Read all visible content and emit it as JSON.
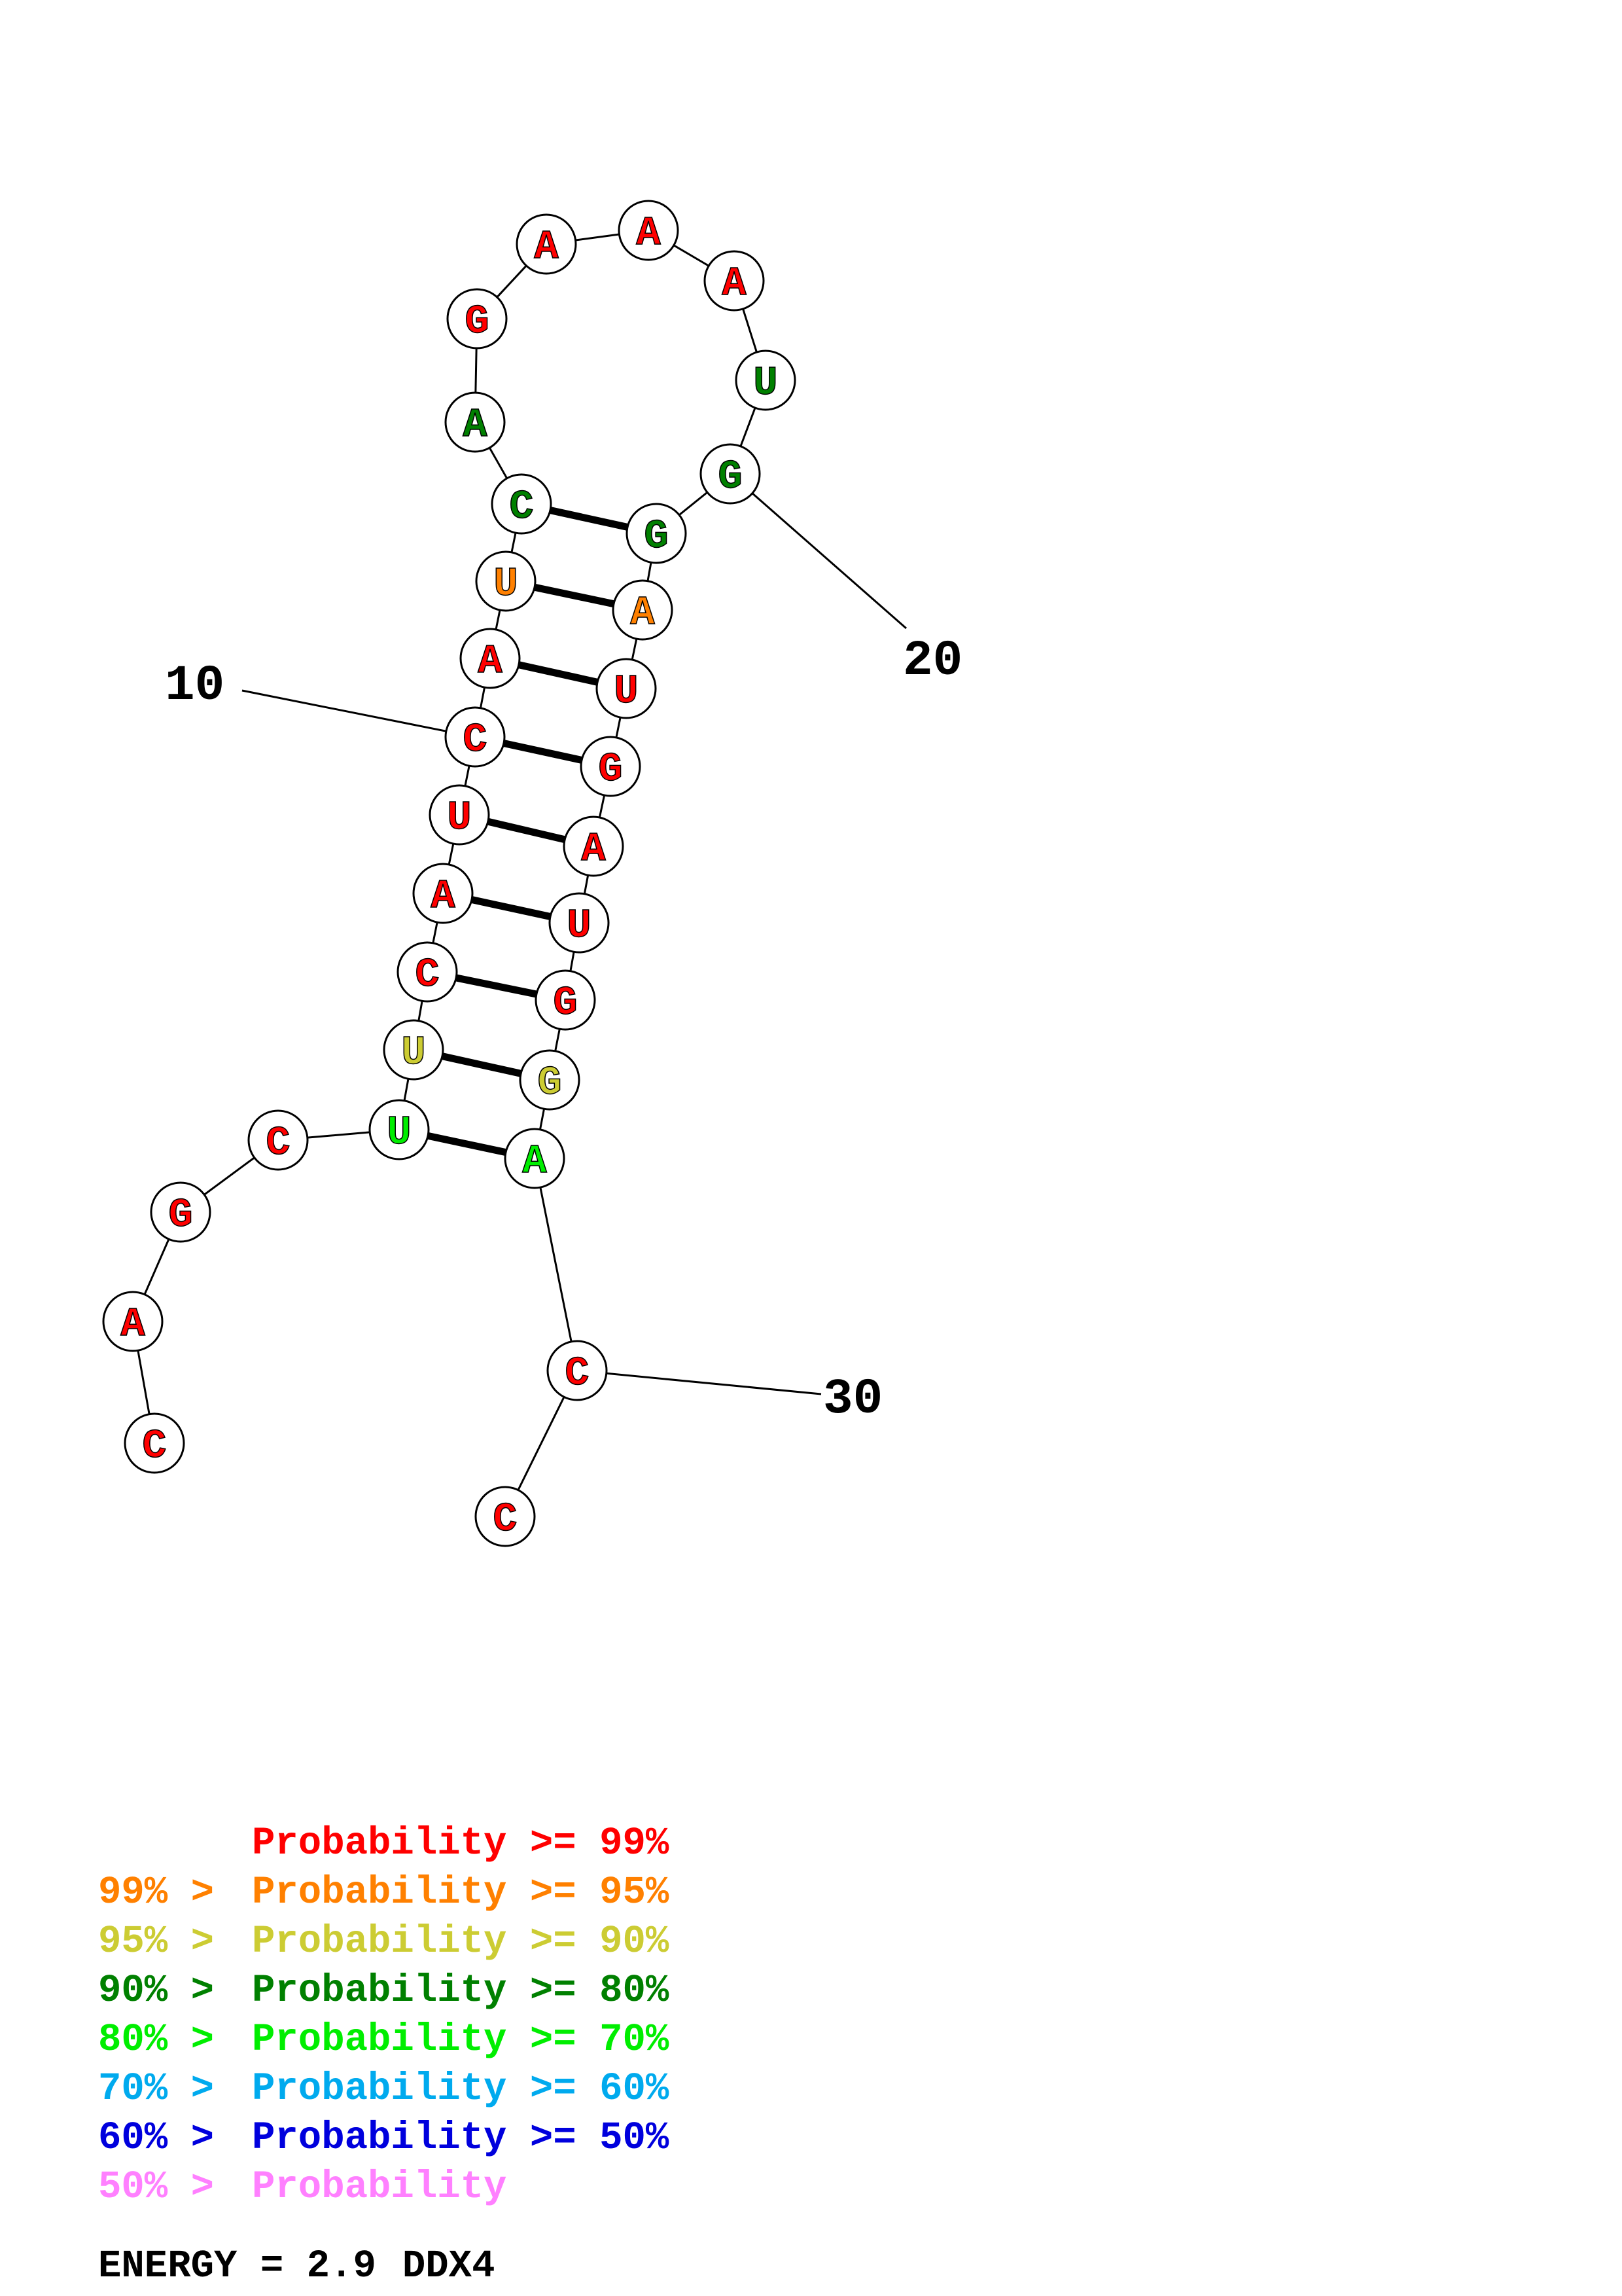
{
  "colors": {
    "red": "#ff0000",
    "orange": "#ff8000",
    "yellow": "#cccc33",
    "darkgreen": "#008000",
    "green": "#00ee00",
    "cyan": "#00aaee",
    "blue": "#0000dd",
    "pink": "#ff80ff"
  },
  "sequence": [
    {
      "base": "C",
      "color": "red"
    },
    {
      "base": "A",
      "color": "red"
    },
    {
      "base": "G",
      "color": "red"
    },
    {
      "base": "C",
      "color": "red"
    },
    {
      "base": "U",
      "color": "green"
    },
    {
      "base": "U",
      "color": "yellow"
    },
    {
      "base": "C",
      "color": "red"
    },
    {
      "base": "A",
      "color": "red"
    },
    {
      "base": "U",
      "color": "red"
    },
    {
      "base": "C",
      "color": "red"
    },
    {
      "base": "A",
      "color": "red"
    },
    {
      "base": "U",
      "color": "orange"
    },
    {
      "base": "C",
      "color": "darkgreen"
    },
    {
      "base": "A",
      "color": "darkgreen"
    },
    {
      "base": "G",
      "color": "red"
    },
    {
      "base": "A",
      "color": "red"
    },
    {
      "base": "A",
      "color": "red"
    },
    {
      "base": "A",
      "color": "red"
    },
    {
      "base": "U",
      "color": "darkgreen"
    },
    {
      "base": "G",
      "color": "darkgreen"
    },
    {
      "base": "G",
      "color": "darkgreen"
    },
    {
      "base": "A",
      "color": "orange"
    },
    {
      "base": "U",
      "color": "red"
    },
    {
      "base": "G",
      "color": "red"
    },
    {
      "base": "A",
      "color": "red"
    },
    {
      "base": "U",
      "color": "red"
    },
    {
      "base": "G",
      "color": "red"
    },
    {
      "base": "G",
      "color": "yellow"
    },
    {
      "base": "A",
      "color": "green"
    },
    {
      "base": "C",
      "color": "red"
    },
    {
      "base": "C",
      "color": "red"
    }
  ],
  "pairs": [
    [
      5,
      29
    ],
    [
      6,
      28
    ],
    [
      7,
      27
    ],
    [
      8,
      26
    ],
    [
      9,
      25
    ],
    [
      10,
      24
    ],
    [
      11,
      23
    ],
    [
      12,
      22
    ],
    [
      13,
      21
    ]
  ],
  "position_labels": [
    {
      "index": 10,
      "text": "10"
    },
    {
      "index": 20,
      "text": "20"
    },
    {
      "index": 30,
      "text": "30"
    }
  ],
  "legend": [
    {
      "prefix": "",
      "text": "Probability >= 99%",
      "color": "red"
    },
    {
      "prefix": "99% > ",
      "text": "Probability >= 95%",
      "color": "orange"
    },
    {
      "prefix": "95% > ",
      "text": "Probability >= 90%",
      "color": "yellow"
    },
    {
      "prefix": "90% > ",
      "text": "Probability >= 80%",
      "color": "darkgreen"
    },
    {
      "prefix": "80% > ",
      "text": "Probability >= 70%",
      "color": "green"
    },
    {
      "prefix": "70% > ",
      "text": "Probability >= 60%",
      "color": "cyan"
    },
    {
      "prefix": "60% > ",
      "text": "Probability >= 50%",
      "color": "blue"
    },
    {
      "prefix": "50% > ",
      "text": "Probability",
      "color": "pink"
    }
  ],
  "footer": {
    "energy": "ENERGY = 2.9",
    "name": "DDX4"
  }
}
